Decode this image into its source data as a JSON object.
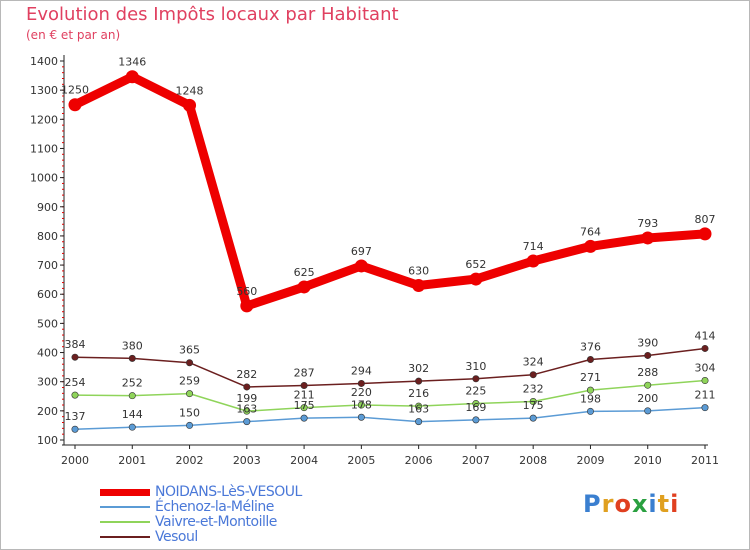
{
  "title": "Evolution des Impôts locaux par Habitant",
  "subtitle": "(en € et par an)",
  "logo_text": "Proxiti",
  "chart_data": {
    "type": "line",
    "x": [
      "2000",
      "2001",
      "2002",
      "2003",
      "2004",
      "2005",
      "2006",
      "2007",
      "2008",
      "2009",
      "2010",
      "2011"
    ],
    "ylim": [
      100,
      1400
    ],
    "yticks": [
      100,
      200,
      300,
      400,
      500,
      600,
      700,
      800,
      900,
      1000,
      1100,
      1200,
      1300,
      1400
    ],
    "grid": false,
    "legend_position": "bottom-left",
    "series": [
      {
        "name": "NOIDANS-LèS-VESOUL",
        "color": "#ee0000",
        "values": [
          1250,
          1346,
          1248,
          560,
          625,
          697,
          630,
          652,
          714,
          764,
          793,
          807
        ],
        "labels": [
          "1250",
          "1346",
          "1248",
          "560",
          "625",
          "697",
          "630",
          "652",
          "714",
          "764",
          "793",
          "807"
        ]
      },
      {
        "name": "Échenoz-la-Méline",
        "color": "#5b9bd5",
        "values": [
          137,
          144,
          150,
          163,
          175,
          178,
          163,
          169,
          175,
          198,
          200,
          211
        ],
        "labels": [
          "137",
          "144",
          "150",
          "163",
          "175",
          "178",
          "163",
          "169",
          "175",
          "198",
          "200",
          "211"
        ]
      },
      {
        "name": "Vaivre-et-Montoille",
        "color": "#8fd45a",
        "values": [
          254,
          252,
          259,
          199,
          211,
          220,
          216,
          225,
          232,
          271,
          288,
          304
        ],
        "labels": [
          "254",
          "252",
          "259",
          "199",
          "211",
          "220",
          "216",
          "225",
          "232",
          "271",
          "288",
          "304"
        ]
      },
      {
        "name": "Vesoul",
        "color": "#6b1f1f",
        "values": [
          384,
          380,
          365,
          282,
          287,
          294,
          302,
          310,
          324,
          376,
          390,
          414
        ],
        "labels": [
          "384",
          "380",
          "365",
          "282",
          "287",
          "294",
          "302",
          "310",
          "324",
          "376",
          "390",
          "414"
        ]
      }
    ]
  }
}
